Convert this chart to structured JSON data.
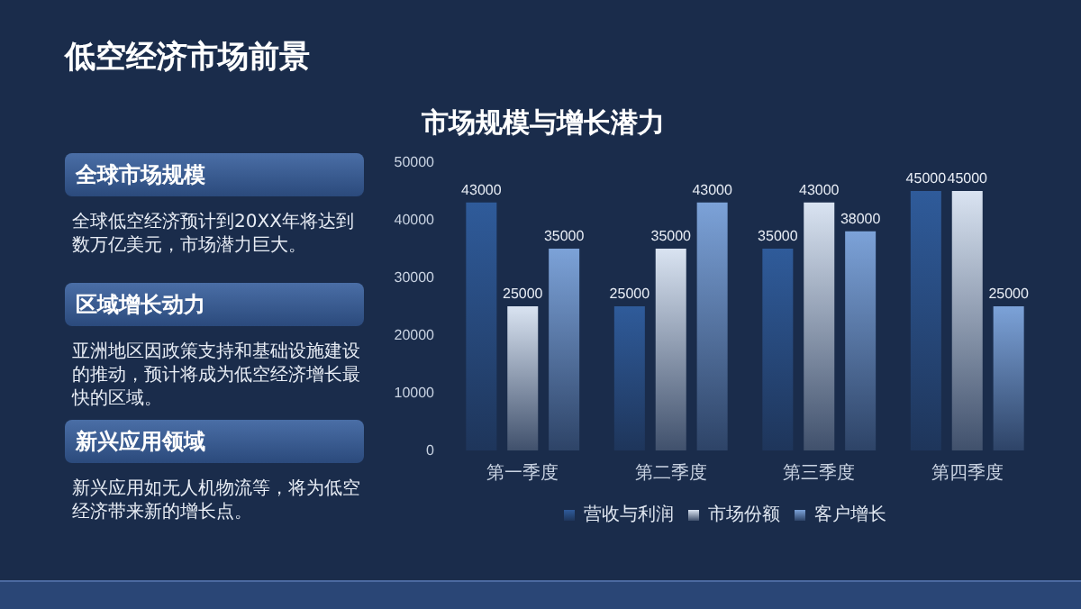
{
  "chart_data": [
    {
      "type": "bar",
      "title": "市场规模与增长潜力",
      "categories": [
        "第一季度",
        "第二季度",
        "第三季度",
        "第四季度"
      ],
      "series": [
        {
          "name": "营收与利润",
          "color": "#2f5b9a",
          "values": [
            43000,
            25000,
            35000,
            45000
          ]
        },
        {
          "name": "市场份额",
          "color": "#d9e3f1",
          "values": [
            25000,
            35000,
            43000,
            45000
          ]
        },
        {
          "name": "客户增长",
          "color": "#7ca2d8",
          "values": [
            35000,
            43000,
            38000,
            25000
          ]
        }
      ],
      "ylim": [
        0,
        50000
      ],
      "yticks": [
        0,
        10000,
        20000,
        30000,
        40000,
        50000
      ],
      "grid": false,
      "legend": "bottom",
      "data_labels": true
    },
    {
      "type": "other",
      "title": "低空经济市场前景",
      "annotations": [
        "全球市场规模",
        "全球低空经济预计到20XX年将达到数万亿美元，市场潜力巨大。",
        "区域增长动力",
        "亚洲地区因政策支持和基础设施建设的推动，预计将成为低空经济增长最快的区域。",
        "新兴应用领域",
        "新兴应用如无人机物流等，将为低空经济带来新的增长点。"
      ]
    }
  ]
}
